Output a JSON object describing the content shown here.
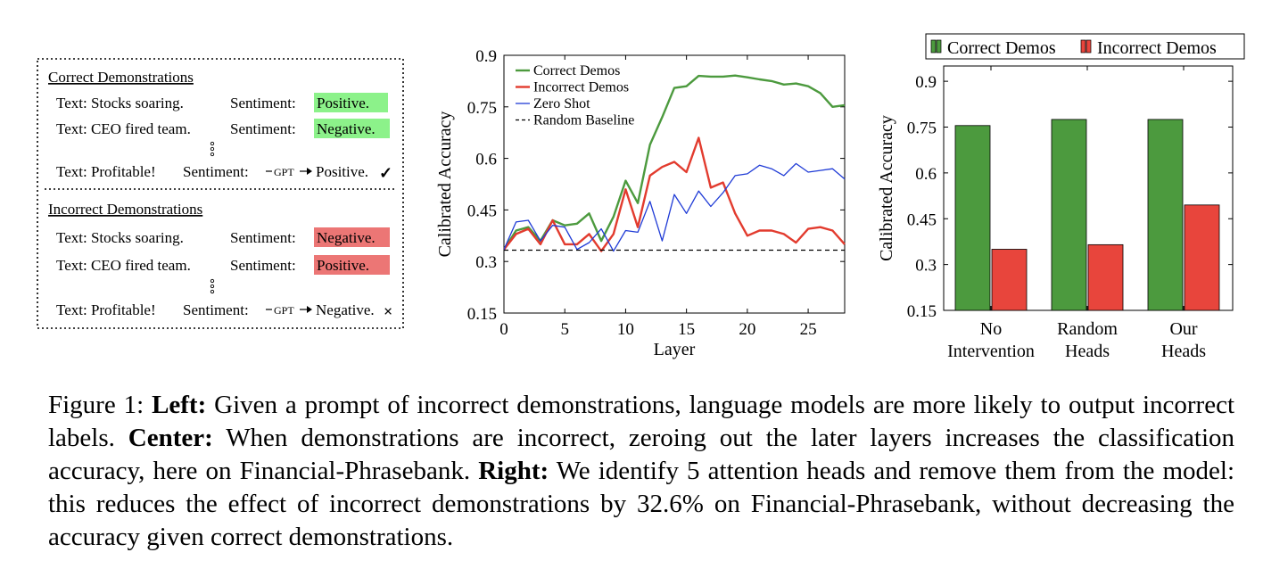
{
  "left_panel": {
    "correct": {
      "title": "Correct Demonstrations",
      "rows": [
        {
          "text": "Text: Stocks soaring.",
          "sentiment_label": "Sentiment:",
          "label": "Positive.",
          "color": "#8cf28a"
        },
        {
          "text": "Text: CEO fired team.",
          "sentiment_label": "Sentiment:",
          "label": "Negative.",
          "color": "#8cf28a"
        }
      ],
      "query": {
        "text": "Text: Profitable!",
        "sentiment_label": "Sentiment:",
        "arrow_label": "GPT",
        "output": "Positive.",
        "mark": "✓"
      }
    },
    "incorrect": {
      "title": "Incorrect Demonstrations",
      "rows": [
        {
          "text": "Text: Stocks soaring.",
          "sentiment_label": "Sentiment:",
          "label": "Negative.",
          "color": "#ec7675"
        },
        {
          "text": "Text: CEO fired team.",
          "sentiment_label": "Sentiment:",
          "label": "Positive.",
          "color": "#ec7675"
        }
      ],
      "query": {
        "text": "Text: Profitable!",
        "sentiment_label": "Sentiment:",
        "arrow_label": "GPT",
        "output": "Negative.",
        "mark": "×"
      }
    }
  },
  "chart_data": [
    {
      "type": "line",
      "xlabel": "Layer",
      "ylabel": "Calibrated Accuracy",
      "xlim": [
        0,
        28
      ],
      "ylim": [
        0.15,
        0.9
      ],
      "xticks": [
        0,
        5,
        10,
        15,
        20,
        25
      ],
      "yticks": [
        0.15,
        0.3,
        0.45,
        0.6,
        0.75,
        0.9
      ],
      "ytick_labels": [
        "0.15",
        "0.3",
        "0.45",
        "0.6",
        "0.75",
        "0.9"
      ],
      "legend_position": "top-left",
      "series": [
        {
          "name": "Correct Demos",
          "color": "#4c9a3e",
          "x": [
            0,
            1,
            2,
            3,
            4,
            5,
            6,
            7,
            8,
            9,
            10,
            11,
            12,
            13,
            14,
            15,
            16,
            17,
            18,
            19,
            20,
            21,
            22,
            23,
            24,
            25,
            26,
            27,
            28
          ],
          "values": [
            0.335,
            0.39,
            0.4,
            0.36,
            0.42,
            0.405,
            0.41,
            0.44,
            0.36,
            0.43,
            0.535,
            0.47,
            0.64,
            0.72,
            0.805,
            0.81,
            0.84,
            0.838,
            0.838,
            0.841,
            0.836,
            0.83,
            0.825,
            0.815,
            0.818,
            0.81,
            0.79,
            0.75,
            0.755
          ]
        },
        {
          "name": "Incorrect Demos",
          "color": "#e23b2e",
          "x": [
            0,
            1,
            2,
            3,
            4,
            5,
            6,
            7,
            8,
            9,
            10,
            11,
            12,
            13,
            14,
            15,
            16,
            17,
            18,
            19,
            20,
            21,
            22,
            23,
            24,
            25,
            26,
            27,
            28
          ],
          "values": [
            0.335,
            0.38,
            0.395,
            0.35,
            0.42,
            0.35,
            0.35,
            0.38,
            0.33,
            0.38,
            0.51,
            0.4,
            0.55,
            0.575,
            0.59,
            0.56,
            0.66,
            0.515,
            0.53,
            0.44,
            0.375,
            0.39,
            0.39,
            0.38,
            0.355,
            0.395,
            0.4,
            0.39,
            0.35
          ]
        },
        {
          "name": "Zero Shot",
          "color": "#1f3bd6",
          "x": [
            0,
            1,
            2,
            3,
            4,
            5,
            6,
            7,
            8,
            9,
            10,
            11,
            12,
            13,
            14,
            15,
            16,
            17,
            18,
            19,
            20,
            21,
            22,
            23,
            24,
            25,
            26,
            27,
            28
          ],
          "values": [
            0.335,
            0.415,
            0.42,
            0.36,
            0.405,
            0.4,
            0.335,
            0.355,
            0.395,
            0.33,
            0.39,
            0.385,
            0.475,
            0.36,
            0.495,
            0.44,
            0.505,
            0.46,
            0.5,
            0.55,
            0.555,
            0.58,
            0.57,
            0.55,
            0.585,
            0.56,
            0.565,
            0.57,
            0.54
          ]
        },
        {
          "name": "Random Baseline",
          "color": "#000000",
          "dashed": true,
          "x": [
            0,
            28
          ],
          "values": [
            0.333,
            0.333
          ]
        }
      ]
    },
    {
      "type": "bar",
      "ylabel": "Calibrated Accuracy",
      "ylim": [
        0.15,
        0.95
      ],
      "yticks": [
        0.15,
        0.3,
        0.45,
        0.6,
        0.75,
        0.9
      ],
      "ytick_labels": [
        "0.15",
        "0.3",
        "0.45",
        "0.6",
        "0.75",
        "0.9"
      ],
      "categories": [
        [
          "No",
          "Intervention"
        ],
        [
          "Random",
          "Heads"
        ],
        [
          "Our",
          "Heads"
        ]
      ],
      "legend_position": "top",
      "series": [
        {
          "name": "Correct Demos",
          "color": "#4c9a3e",
          "values": [
            0.755,
            0.775,
            0.775
          ]
        },
        {
          "name": "Incorrect Demos",
          "color": "#e8453c",
          "values": [
            0.35,
            0.365,
            0.495
          ]
        }
      ]
    }
  ],
  "caption": {
    "figure_label": "Figure 1:",
    "left_head": "Left:",
    "left_text": "Given a prompt of incorrect demonstrations, language models are more likely to output incorrect labels.",
    "center_head": "Center:",
    "center_text": "When demonstrations are incorrect, zeroing out the later layers increases the classification accuracy, here on Financial-Phrasebank.",
    "right_head": "Right:",
    "right_text": "We identify 5 attention heads and remove them from the model: this reduces the effect of incorrect demonstrations by 32.6% on Financial-Phrasebank, without decreasing the accuracy given correct demonstrations."
  }
}
